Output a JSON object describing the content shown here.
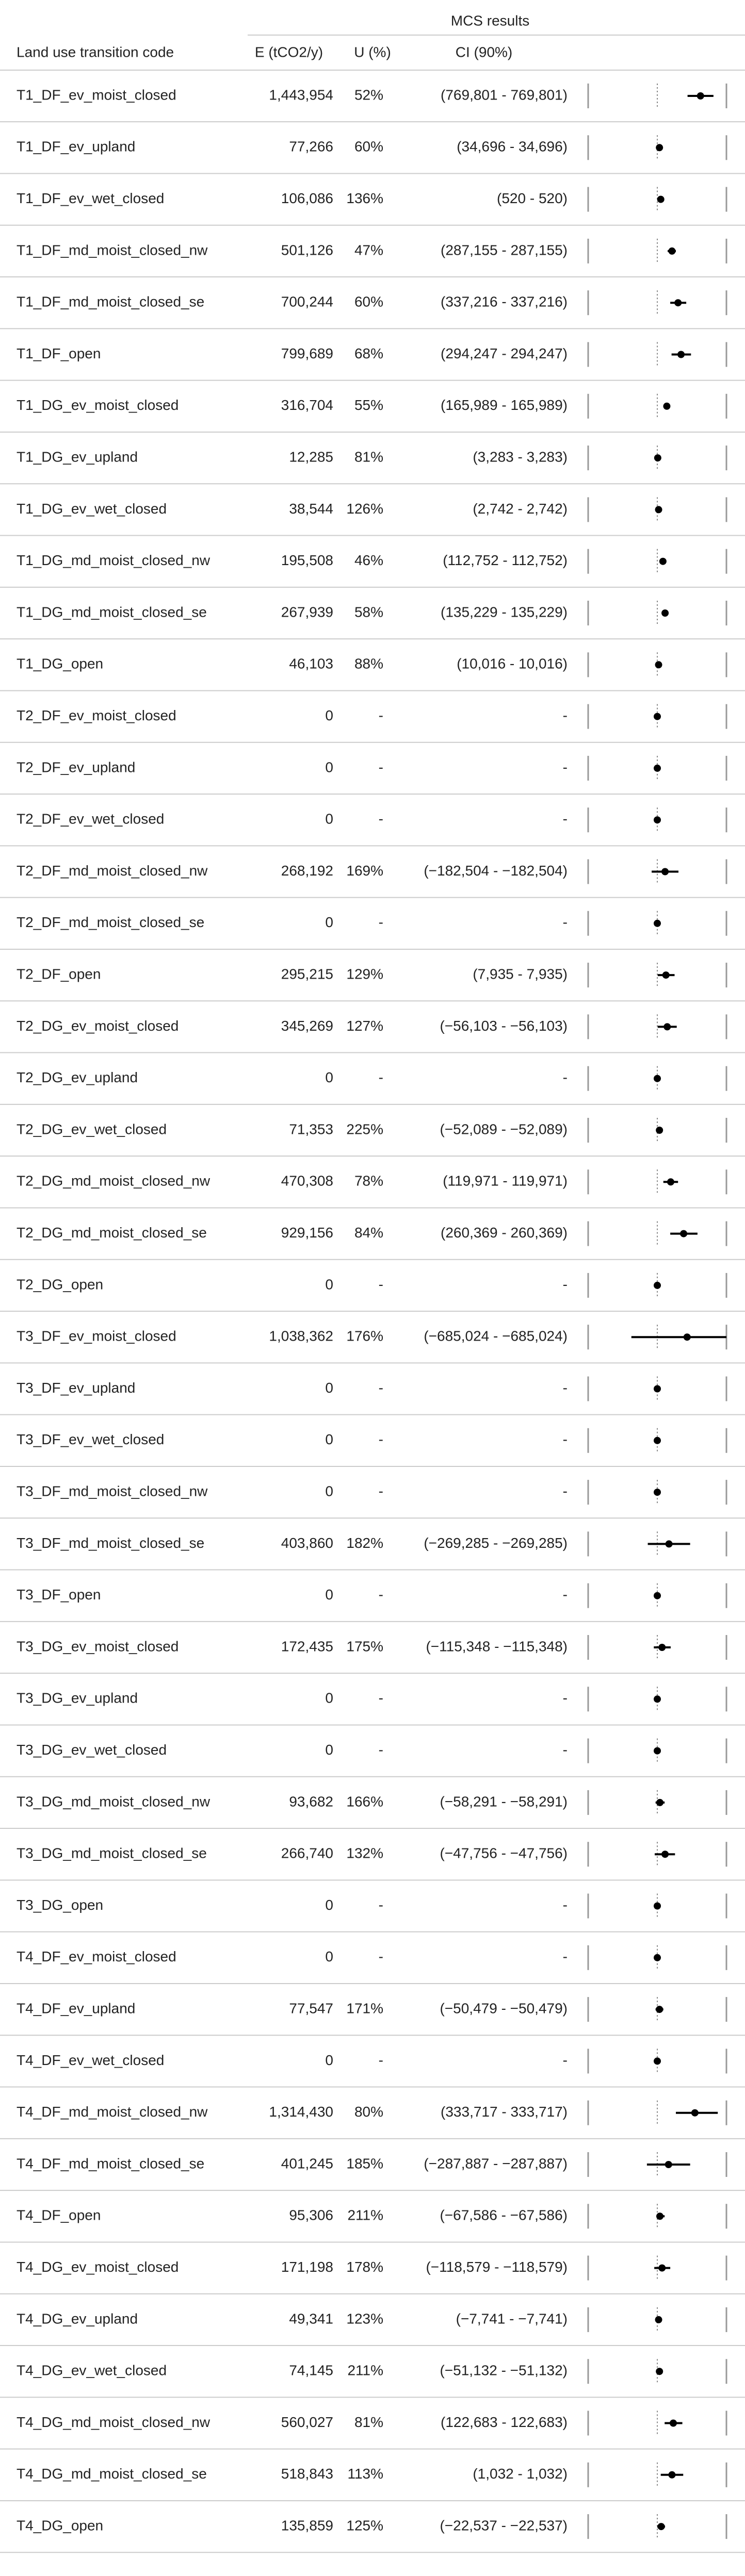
{
  "header": {
    "group_label": "MCS results",
    "col_code": "Land use transition code",
    "col_e": "E (tCO2/y)",
    "col_u": "U (%)",
    "col_ci": "CI (90%)"
  },
  "colors": {
    "text": "#222222",
    "rule": "#cccccc",
    "point": "#000000",
    "ref": "#888888",
    "bracket": "#999999"
  },
  "chart_data": {
    "type": "table",
    "title": "",
    "xlim": [
      -160,
      160
    ],
    "columns": [
      "Land use transition code",
      "E (tCO2/y)",
      "U (%)",
      "CI (90%)"
    ],
    "rows": [
      {
        "code": "T1_DF_ev_moist_closed",
        "e": "1,443,954",
        "u": "52%",
        "ci": "(769,801 - 769,801)",
        "x": 100,
        "lo": 70,
        "hi": 130
      },
      {
        "code": "T1_DF_ev_upland",
        "e": "77,266",
        "u": "60%",
        "ci": "(34,696 - 34,696)",
        "x": 5,
        "lo": 3,
        "hi": 7
      },
      {
        "code": "T1_DF_ev_wet_closed",
        "e": "106,086",
        "u": "136%",
        "ci": "(520 - 520)",
        "x": 8,
        "lo": 2,
        "hi": 15
      },
      {
        "code": "T1_DF_md_moist_closed_nw",
        "e": "501,126",
        "u": "47%",
        "ci": "(287,155 - 287,155)",
        "x": 34,
        "lo": 24,
        "hi": 43
      },
      {
        "code": "T1_DF_md_moist_closed_se",
        "e": "700,244",
        "u": "60%",
        "ci": "(337,216 - 337,216)",
        "x": 48,
        "lo": 30,
        "hi": 67
      },
      {
        "code": "T1_DF_open",
        "e": "799,689",
        "u": "68%",
        "ci": "(294,247 - 294,247)",
        "x": 55,
        "lo": 33,
        "hi": 78
      },
      {
        "code": "T1_DG_ev_moist_closed",
        "e": "316,704",
        "u": "55%",
        "ci": "(165,989 - 165,989)",
        "x": 22,
        "lo": 15,
        "hi": 28
      },
      {
        "code": "T1_DG_ev_upland",
        "e": "12,285",
        "u": "81%",
        "ci": "(3,283 - 3,283)",
        "x": 1,
        "lo": 0,
        "hi": 2
      },
      {
        "code": "T1_DG_ev_wet_closed",
        "e": "38,544",
        "u": "126%",
        "ci": "(2,742 - 2,742)",
        "x": 3,
        "lo": 0,
        "hi": 5
      },
      {
        "code": "T1_DG_md_moist_closed_nw",
        "e": "195,508",
        "u": "46%",
        "ci": "(112,752 - 112,752)",
        "x": 13,
        "lo": 10,
        "hi": 16
      },
      {
        "code": "T1_DG_md_moist_closed_se",
        "e": "267,939",
        "u": "58%",
        "ci": "(135,229 - 135,229)",
        "x": 18,
        "lo": 12,
        "hi": 24
      },
      {
        "code": "T1_DG_open",
        "e": "46,103",
        "u": "88%",
        "ci": "(10,016 - 10,016)",
        "x": 3,
        "lo": 1,
        "hi": 5
      },
      {
        "code": "T2_DF_ev_moist_closed",
        "e": "0",
        "u": "-",
        "ci": "-",
        "x": 0,
        "lo": 0,
        "hi": 0
      },
      {
        "code": "T2_DF_ev_upland",
        "e": "0",
        "u": "-",
        "ci": "-",
        "x": 0,
        "lo": 0,
        "hi": 0
      },
      {
        "code": "T2_DF_ev_wet_closed",
        "e": "0",
        "u": "-",
        "ci": "-",
        "x": 0,
        "lo": 0,
        "hi": 0
      },
      {
        "code": "T2_DF_md_moist_closed_nw",
        "e": "268,192",
        "u": "169%",
        "ci": "(−182,504 - −182,504)",
        "x": 18,
        "lo": -13,
        "hi": 49
      },
      {
        "code": "T2_DF_md_moist_closed_se",
        "e": "0",
        "u": "-",
        "ci": "-",
        "x": 0,
        "lo": 0,
        "hi": 0
      },
      {
        "code": "T2_DF_open",
        "e": "295,215",
        "u": "129%",
        "ci": "(7,935 - 7,935)",
        "x": 20,
        "lo": 1,
        "hi": 40
      },
      {
        "code": "T2_DG_ev_moist_closed",
        "e": "345,269",
        "u": "127%",
        "ci": "(−56,103 - −56,103)",
        "x": 23,
        "lo": 1,
        "hi": 45
      },
      {
        "code": "T2_DG_ev_upland",
        "e": "0",
        "u": "-",
        "ci": "-",
        "x": 0,
        "lo": 0,
        "hi": 0
      },
      {
        "code": "T2_DG_ev_wet_closed",
        "e": "71,353",
        "u": "225%",
        "ci": "(−52,089 - −52,089)",
        "x": 5,
        "lo": -1,
        "hi": 11
      },
      {
        "code": "T2_DG_md_moist_closed_nw",
        "e": "470,308",
        "u": "78%",
        "ci": "(119,971 - 119,971)",
        "x": 31,
        "lo": 14,
        "hi": 48
      },
      {
        "code": "T2_DG_md_moist_closed_se",
        "e": "929,156",
        "u": "84%",
        "ci": "(260,369 - 260,369)",
        "x": 61,
        "lo": 30,
        "hi": 93
      },
      {
        "code": "T2_DG_open",
        "e": "0",
        "u": "-",
        "ci": "-",
        "x": 0,
        "lo": 0,
        "hi": 0
      },
      {
        "code": "T3_DF_ev_moist_closed",
        "e": "1,038,362",
        "u": "176%",
        "ci": "(−685,024 - −685,024)",
        "x": 69,
        "lo": -60,
        "hi": 160
      },
      {
        "code": "T3_DF_ev_upland",
        "e": "0",
        "u": "-",
        "ci": "-",
        "x": 0,
        "lo": 0,
        "hi": 0
      },
      {
        "code": "T3_DF_ev_wet_closed",
        "e": "0",
        "u": "-",
        "ci": "-",
        "x": 0,
        "lo": 0,
        "hi": 0
      },
      {
        "code": "T3_DF_md_moist_closed_nw",
        "e": "0",
        "u": "-",
        "ci": "-",
        "x": 0,
        "lo": 0,
        "hi": 0
      },
      {
        "code": "T3_DF_md_moist_closed_se",
        "e": "403,860",
        "u": "182%",
        "ci": "(−269,285 - −269,285)",
        "x": 27,
        "lo": -22,
        "hi": 76
      },
      {
        "code": "T3_DF_open",
        "e": "0",
        "u": "-",
        "ci": "-",
        "x": 0,
        "lo": 0,
        "hi": 0
      },
      {
        "code": "T3_DG_ev_moist_closed",
        "e": "172,435",
        "u": "175%",
        "ci": "(−115,348 - −115,348)",
        "x": 11,
        "lo": -8,
        "hi": 31
      },
      {
        "code": "T3_DG_ev_upland",
        "e": "0",
        "u": "-",
        "ci": "-",
        "x": 0,
        "lo": 0,
        "hi": 0
      },
      {
        "code": "T3_DG_ev_wet_closed",
        "e": "0",
        "u": "-",
        "ci": "-",
        "x": 0,
        "lo": 0,
        "hi": 0
      },
      {
        "code": "T3_DG_md_moist_closed_nw",
        "e": "93,682",
        "u": "166%",
        "ci": "(−58,291 - −58,291)",
        "x": 6,
        "lo": -4,
        "hi": 17
      },
      {
        "code": "T3_DG_md_moist_closed_se",
        "e": "266,740",
        "u": "132%",
        "ci": "(−47,756 - −47,756)",
        "x": 18,
        "lo": -6,
        "hi": 41
      },
      {
        "code": "T3_DG_open",
        "e": "0",
        "u": "-",
        "ci": "-",
        "x": 0,
        "lo": 0,
        "hi": 0
      },
      {
        "code": "T4_DF_ev_moist_closed",
        "e": "0",
        "u": "-",
        "ci": "-",
        "x": 0,
        "lo": 0,
        "hi": 0
      },
      {
        "code": "T4_DF_ev_upland",
        "e": "77,547",
        "u": "171%",
        "ci": "(−50,479 - −50,479)",
        "x": 5,
        "lo": -4,
        "hi": 14
      },
      {
        "code": "T4_DF_ev_wet_closed",
        "e": "0",
        "u": "-",
        "ci": "-",
        "x": 0,
        "lo": 0,
        "hi": 0
      },
      {
        "code": "T4_DF_md_moist_closed_nw",
        "e": "1,314,430",
        "u": "80%",
        "ci": "(333,717 - 333,717)",
        "x": 87,
        "lo": 43,
        "hi": 140
      },
      {
        "code": "T4_DF_md_moist_closed_se",
        "e": "401,245",
        "u": "185%",
        "ci": "(−287,887 - −287,887)",
        "x": 26,
        "lo": -24,
        "hi": 76
      },
      {
        "code": "T4_DF_open",
        "e": "95,306",
        "u": "211%",
        "ci": "(−67,586 - −67,586)",
        "x": 6,
        "lo": -2,
        "hi": 17
      },
      {
        "code": "T4_DG_ev_moist_closed",
        "e": "171,198",
        "u": "178%",
        "ci": "(−118,579 - −118,579)",
        "x": 11,
        "lo": -7,
        "hi": 30
      },
      {
        "code": "T4_DG_ev_upland",
        "e": "49,341",
        "u": "123%",
        "ci": "(−7,741 - −7,741)",
        "x": 3,
        "lo": 1,
        "hi": 6
      },
      {
        "code": "T4_DG_ev_wet_closed",
        "e": "74,145",
        "u": "211%",
        "ci": "(−51,132 - −51,132)",
        "x": 5,
        "lo": 0,
        "hi": 10
      },
      {
        "code": "T4_DG_md_moist_closed_nw",
        "e": "560,027",
        "u": "81%",
        "ci": "(122,683 - 122,683)",
        "x": 37,
        "lo": 17,
        "hi": 58
      },
      {
        "code": "T4_DG_md_moist_closed_se",
        "e": "518,843",
        "u": "113%",
        "ci": "(1,032 - 1,032)",
        "x": 34,
        "lo": 8,
        "hi": 60
      },
      {
        "code": "T4_DG_open",
        "e": "135,859",
        "u": "125%",
        "ci": "(−22,537 - −22,537)",
        "x": 9,
        "lo": 0,
        "hi": 18
      }
    ]
  }
}
